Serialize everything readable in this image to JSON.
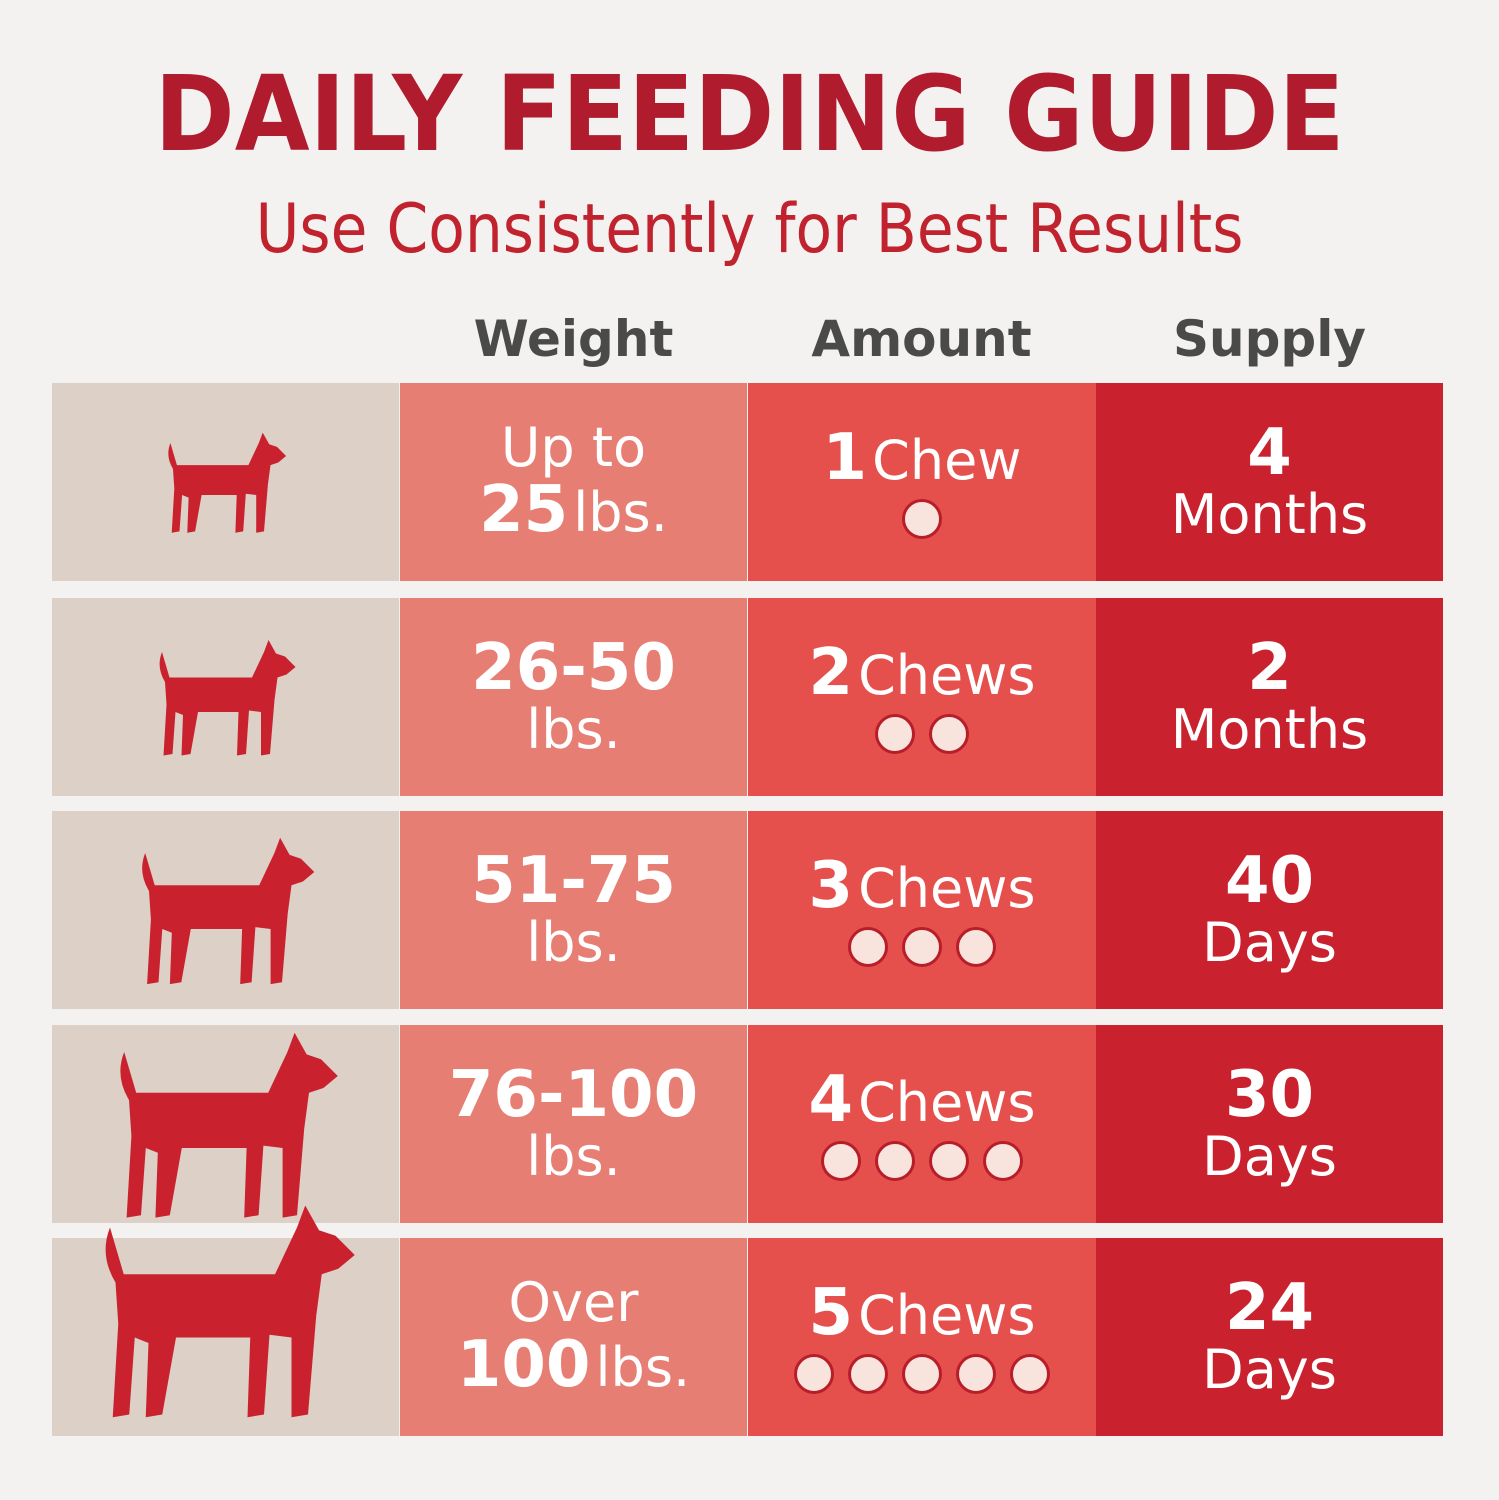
{
  "title": "DAILY FEEDING GUIDE",
  "subtitle": "Use Consistently for Best Results",
  "headers": {
    "weight": "Weight",
    "amount": "Amount",
    "supply": "Supply"
  },
  "colors": {
    "title": "#b01c2e",
    "dog_column": "#ddd0c6",
    "weight_column": "#e77e74",
    "amount_column": "#e5504c",
    "supply_column": "#c9222e",
    "chew_dot": "#f8e4dc"
  },
  "rows": [
    {
      "dog_icon": "small-dog-icon",
      "weight_top": "Up to",
      "weight_num": "25",
      "weight_unit": "lbs.",
      "amount_num": "1",
      "amount_unit": "Chew",
      "chews": 1,
      "supply_num": "4",
      "supply_unit": "Months"
    },
    {
      "dog_icon": "bulldog-icon",
      "weight_num": "26-50",
      "weight_unit": "lbs.",
      "amount_num": "2",
      "amount_unit": "Chews",
      "chews": 2,
      "supply_num": "2",
      "supply_unit": "Months"
    },
    {
      "dog_icon": "medium-dog-icon",
      "weight_num": "51-75",
      "weight_unit": "lbs.",
      "amount_num": "3",
      "amount_unit": "Chews",
      "chews": 3,
      "supply_num": "40",
      "supply_unit": "Days"
    },
    {
      "dog_icon": "large-dog-icon",
      "weight_num": "76-100",
      "weight_unit": "lbs.",
      "amount_num": "4",
      "amount_unit": "Chews",
      "chews": 4,
      "supply_num": "30",
      "supply_unit": "Days"
    },
    {
      "dog_icon": "giant-dog-icon",
      "weight_top": "Over",
      "weight_num": "100",
      "weight_unit": "lbs.",
      "amount_num": "5",
      "amount_unit": "Chews",
      "chews": 5,
      "supply_num": "24",
      "supply_unit": "Days"
    }
  ]
}
